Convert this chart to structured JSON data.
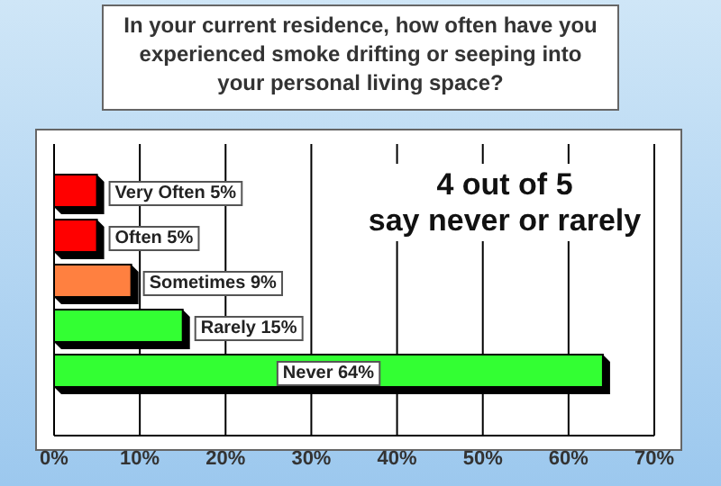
{
  "chart_data": {
    "type": "bar",
    "orientation": "horizontal",
    "title": "In your current residence, how often have you experienced smoke drifting or seeping into your personal living space?",
    "categories": [
      "Very Often",
      "Often",
      "Sometimes",
      "Rarely",
      "Never"
    ],
    "values": [
      5,
      5,
      9,
      15,
      64
    ],
    "value_labels": [
      "5%",
      "5%",
      "9%",
      "15%",
      "64%"
    ],
    "colors": [
      "#ff0000",
      "#ff0000",
      "#ff8040",
      "#33ff33",
      "#33ff33"
    ],
    "xlim": [
      0,
      70
    ],
    "xticks": [
      {
        "value": 0,
        "label": "0%"
      },
      {
        "value": 10,
        "label": "10%"
      },
      {
        "value": 20,
        "label": "20%"
      },
      {
        "value": 30,
        "label": "30%"
      },
      {
        "value": 40,
        "label": "40%"
      },
      {
        "value": 50,
        "label": "50%"
      },
      {
        "value": 60,
        "label": "60%"
      },
      {
        "value": 70,
        "label": "70%"
      }
    ],
    "grid": "x",
    "annotations": [
      "4 out of 5 say never or rarely"
    ]
  }
}
